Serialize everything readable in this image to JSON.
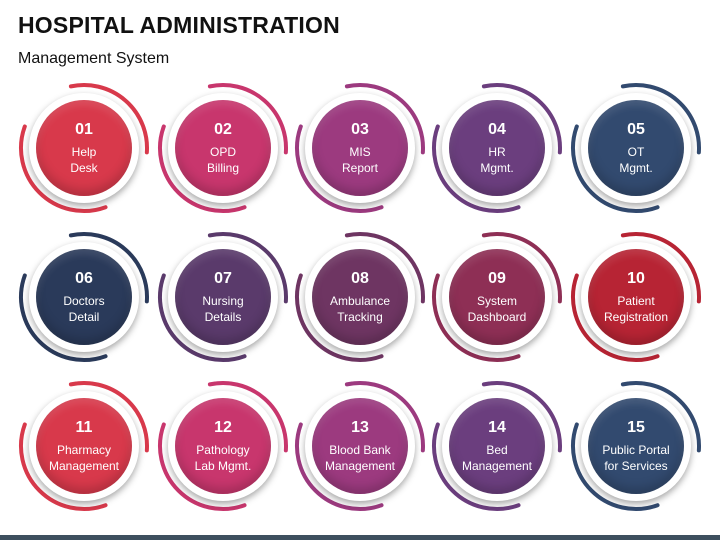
{
  "title": "HOSPITAL ADMINISTRATION",
  "subtitle": "Management System",
  "items": [
    {
      "num": "01",
      "label": "Help\nDesk",
      "color": "#d8394b"
    },
    {
      "num": "02",
      "label": "OPD\nBilling",
      "color": "#c8366d"
    },
    {
      "num": "03",
      "label": "MIS\nReport",
      "color": "#9c3a7f"
    },
    {
      "num": "04",
      "label": "HR\nMgmt.",
      "color": "#6b3e7e"
    },
    {
      "num": "05",
      "label": "OT\nMgmt.",
      "color": "#324a6f"
    },
    {
      "num": "06",
      "label": "Doctors\nDetail",
      "color": "#2a3a5a"
    },
    {
      "num": "07",
      "label": "Nursing\nDetails",
      "color": "#5a3a6b"
    },
    {
      "num": "08",
      "label": "Ambulance\nTracking",
      "color": "#6e3562"
    },
    {
      "num": "09",
      "label": "System\nDashboard",
      "color": "#8e2f55"
    },
    {
      "num": "10",
      "label": "Patient\nRegistration",
      "color": "#b72434"
    },
    {
      "num": "11",
      "label": "Pharmacy\nManagement",
      "color": "#d8394b"
    },
    {
      "num": "12",
      "label": "Pathology\nLab Mgmt.",
      "color": "#c8366d"
    },
    {
      "num": "13",
      "label": "Blood Bank\nManagement",
      "color": "#9c3a7f"
    },
    {
      "num": "14",
      "label": "Bed\nManagement",
      "color": "#6b3e7e"
    },
    {
      "num": "15",
      "label": "Public Portal\nfor Services",
      "color": "#324a6f"
    }
  ]
}
